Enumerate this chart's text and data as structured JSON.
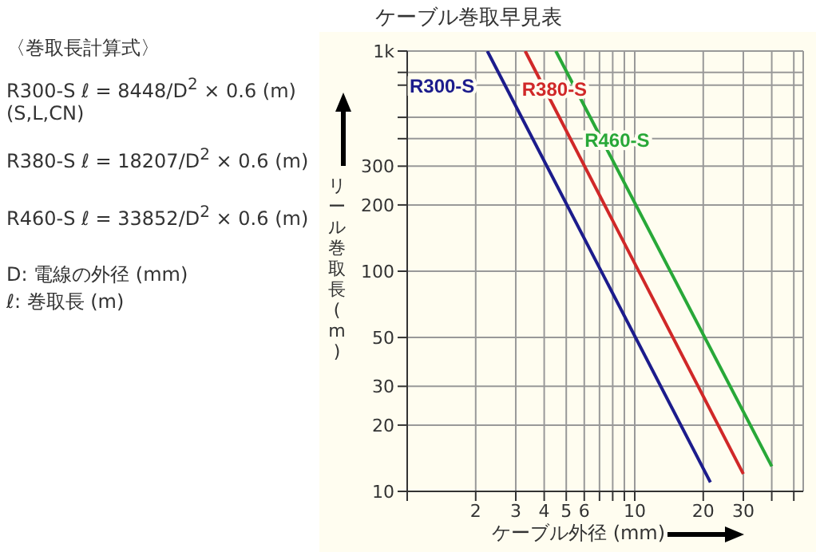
{
  "chart_data": {
    "type": "line",
    "title": "ケーブル巻取早見表",
    "xlabel": "ケーブル外径 (mm)",
    "ylabel": "リール巻取長 (m)",
    "annotations": [
      "〈巻取長計算式〉",
      "R300-S ℓ = 8448/D$^{2}$ × 0.6 (m)",
      "(S,L,CN)",
      "R380-S ℓ = 18207/D$^{2}$ × 0.6 (m)",
      "R460-S ℓ = 33852/D$^{2}$ × 0.6 (m)",
      "D: 電線の外径 (mm)",
      "ℓ: 巻取長 (m)"
    ],
    "log": "xy",
    "grid": true,
    "marker": "none",
    "line_style": "solid",
    "xlim": [
      1,
      55
    ],
    "xticks": [
      {
        "value": 1,
        "label": null
      },
      2,
      3,
      4,
      5,
      6,
      {
        "value": 7,
        "label": null
      },
      {
        "value": 8,
        "label": null
      },
      {
        "value": 9,
        "label": null
      },
      10,
      20,
      30,
      {
        "value": 40,
        "label": null
      },
      {
        "value": 50,
        "label": null
      }
    ],
    "ylim": [
      10,
      1000
    ],
    "yticks": [
      10,
      20,
      30,
      50,
      100,
      200,
      300,
      {
        "value": 400,
        "label": null
      },
      {
        "value": 500,
        "label": null
      },
      {
        "value": 700,
        "label": null
      },
      {
        "value": 800,
        "label": null
      },
      {
        "value": 1000,
        "label": "1k"
      }
    ],
    "series": [
      {
        "name": "R300-S",
        "color": "#1c1c8c",
        "x": [
          2.25,
          21.5
        ],
        "values": [
          1000,
          11
        ]
      },
      {
        "name": "R380-S",
        "color": "#d02828",
        "x": [
          3.3,
          30
        ],
        "values": [
          1000,
          12
        ]
      },
      {
        "name": "R460-S",
        "color": "#28a838",
        "x": [
          4.5,
          40
        ],
        "values": [
          1000,
          13
        ]
      }
    ]
  }
}
